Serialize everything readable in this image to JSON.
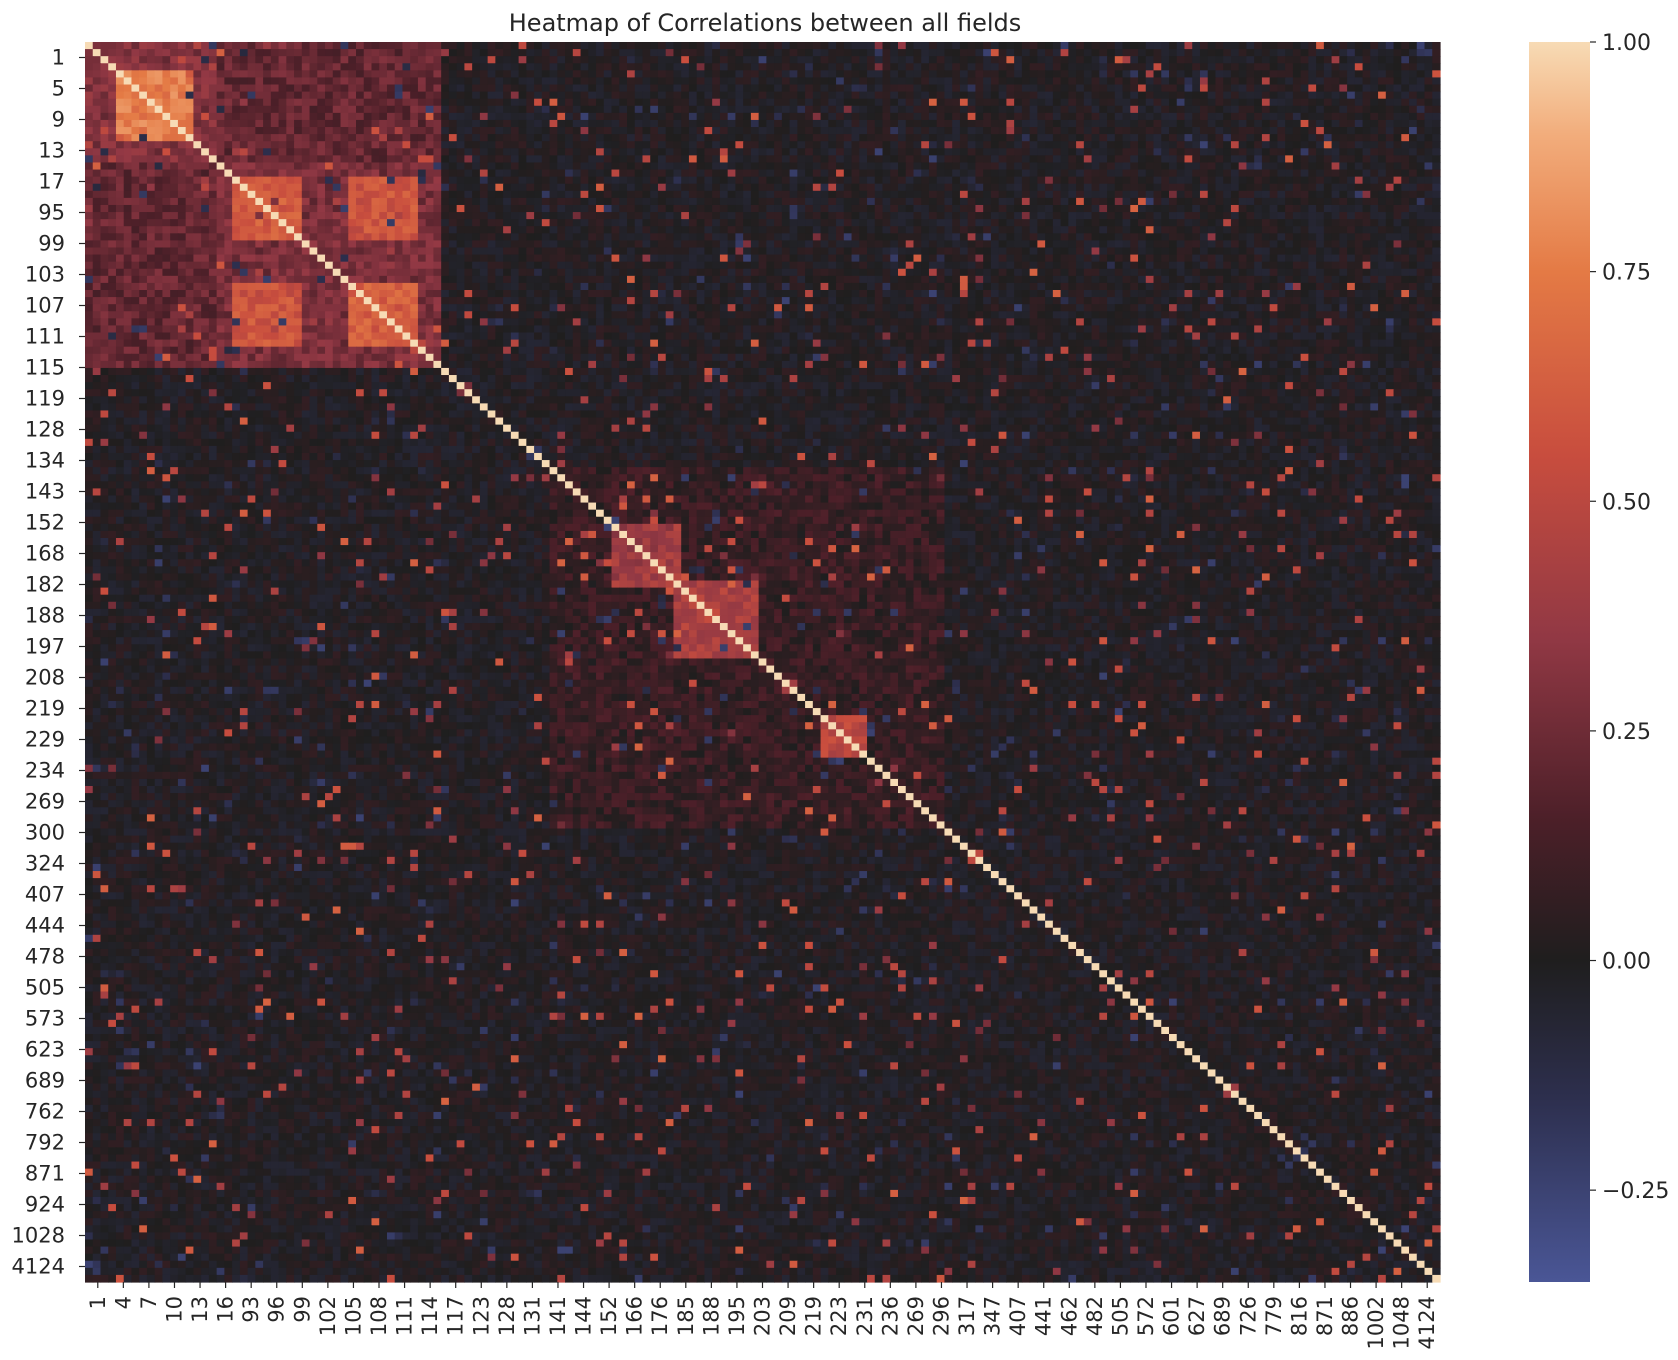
{
  "chart_data": {
    "type": "heatmap",
    "title": "Heatmap of Correlations between all fields",
    "xlabel": "",
    "ylabel": "",
    "n_fields": 175,
    "y_tick_labels": [
      "1",
      "5",
      "9",
      "13",
      "17",
      "95",
      "99",
      "103",
      "107",
      "111",
      "115",
      "119",
      "128",
      "134",
      "143",
      "152",
      "168",
      "182",
      "188",
      "197",
      "208",
      "219",
      "229",
      "234",
      "269",
      "300",
      "324",
      "407",
      "444",
      "478",
      "505",
      "573",
      "623",
      "689",
      "762",
      "792",
      "871",
      "924",
      "1028",
      "4124"
    ],
    "x_tick_labels": [
      "1",
      "4",
      "7",
      "10",
      "13",
      "16",
      "93",
      "96",
      "99",
      "102",
      "105",
      "108",
      "111",
      "114",
      "117",
      "123",
      "128",
      "131",
      "141",
      "144",
      "152",
      "166",
      "176",
      "185",
      "188",
      "195",
      "203",
      "209",
      "219",
      "223",
      "231",
      "236",
      "269",
      "296",
      "317",
      "347",
      "407",
      "441",
      "462",
      "482",
      "505",
      "572",
      "601",
      "627",
      "689",
      "726",
      "779",
      "816",
      "871",
      "886",
      "1002",
      "1048",
      "4124"
    ],
    "colorbar": {
      "min": -0.35,
      "max": 1.0,
      "ticks": [
        1.0,
        0.75,
        0.5,
        0.25,
        0.0,
        -0.25
      ],
      "tick_labels": [
        "1.00",
        "0.75",
        "0.50",
        "0.25",
        "0.00",
        "−0.25"
      ],
      "stops": [
        {
          "value": -0.35,
          "color": "#4a5696"
        },
        {
          "value": -0.15,
          "color": "#2d2f4e"
        },
        {
          "value": 0.0,
          "color": "#1f1e1e"
        },
        {
          "value": 0.15,
          "color": "#4b1f28"
        },
        {
          "value": 0.35,
          "color": "#913844"
        },
        {
          "value": 0.55,
          "color": "#c84d3e"
        },
        {
          "value": 0.75,
          "color": "#e47a45"
        },
        {
          "value": 0.9,
          "color": "#f2ad7c"
        },
        {
          "value": 1.0,
          "color": "#f7dbb5"
        }
      ]
    },
    "blocks": [
      {
        "rows": [
          0,
          16
        ],
        "cols": [
          0,
          16
        ],
        "value": 0.3
      },
      {
        "rows": [
          4,
          13
        ],
        "cols": [
          4,
          13
        ],
        "value": 0.75
      },
      {
        "rows": [
          17,
          45
        ],
        "cols": [
          17,
          45
        ],
        "value": 0.28
      },
      {
        "rows": [
          19,
          27
        ],
        "cols": [
          19,
          27
        ],
        "value": 0.62
      },
      {
        "rows": [
          34,
          42
        ],
        "cols": [
          34,
          42
        ],
        "value": 0.62
      },
      {
        "rows": [
          19,
          27
        ],
        "cols": [
          34,
          42
        ],
        "value": 0.58
      },
      {
        "rows": [
          34,
          42
        ],
        "cols": [
          19,
          27
        ],
        "value": 0.58
      },
      {
        "rows": [
          0,
          45
        ],
        "cols": [
          0,
          45
        ],
        "value": 0.22
      },
      {
        "rows": [
          60,
          110
        ],
        "cols": [
          60,
          110
        ],
        "value": 0.08
      },
      {
        "rows": [
          68,
          76
        ],
        "cols": [
          68,
          76
        ],
        "value": 0.4
      },
      {
        "rows": [
          76,
          86
        ],
        "cols": [
          76,
          86
        ],
        "value": 0.45
      },
      {
        "rows": [
          95,
          100
        ],
        "cols": [
          95,
          100
        ],
        "value": 0.5
      }
    ],
    "diagonal_value": 1.0
  }
}
